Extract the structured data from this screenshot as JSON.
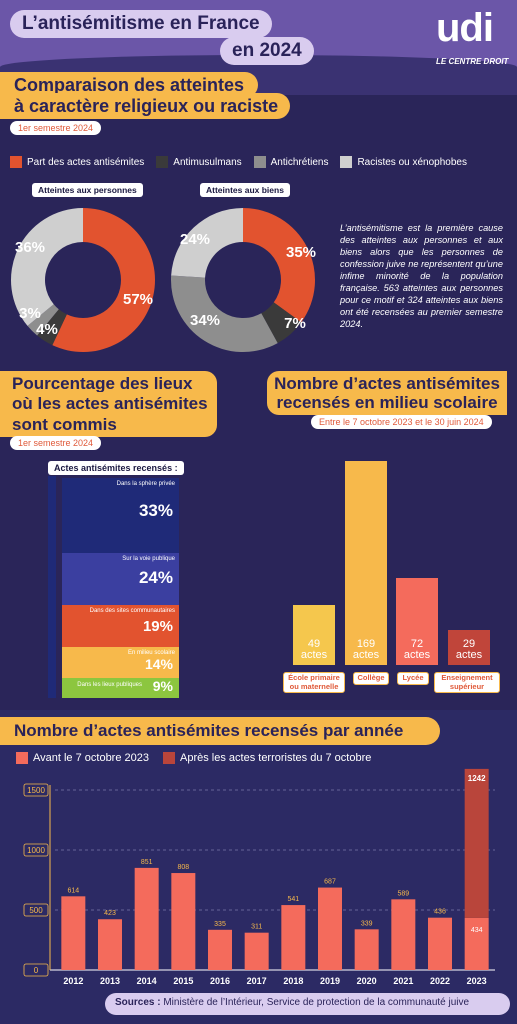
{
  "header": {
    "title_line1": "L’antisémitisme en France",
    "title_line2": "en 2024",
    "logo_text": "udi",
    "logo_tagline": "LE CENTRE DROIT"
  },
  "section1": {
    "title_line1": "Comparaison des atteintes",
    "title_line2": "à caractère religieux ou raciste",
    "period": "1er semestre 2024",
    "legend": [
      {
        "label": "Part des actes antisémites",
        "color": "#e2532f"
      },
      {
        "label": "Antimusulmans",
        "color": "#3a3a3a"
      },
      {
        "label": "Antichrétiens",
        "color": "#8e8e8e"
      },
      {
        "label": "Racistes ou xénophobes",
        "color": "#cfcfcf"
      }
    ],
    "paragraph": "L’antisémitisme est la première cause des atteintes aux personnes et aux biens alors que les personnes de confession juive ne représentent qu’une infime minorité de la population française. 563 atteintes aux personnes pour ce motif et 324 atteintes aux biens ont été recensées au premier semestre 2024."
  },
  "section2": {
    "title_line1": "Pourcentage des lieux",
    "title_line2": "où les actes antisémites",
    "title_line3": "sont commis",
    "period": "1er semestre 2024",
    "header": "Actes antisémites recensés :",
    "rows": [
      {
        "label": "Dans la sphère privée",
        "value": "33%",
        "pct": 33,
        "color": "#1f2a78"
      },
      {
        "label": "Sur la voie publique",
        "value": "24%",
        "pct": 24,
        "color": "#3b3fa0"
      },
      {
        "label": "Dans des sites communautaires",
        "value": "19%",
        "pct": 19,
        "color": "#e2532f"
      },
      {
        "label": "En milieu scolaire",
        "value": "14%",
        "pct": 14,
        "color": "#f7b94b"
      },
      {
        "label": "Dans les lieux publiques",
        "value": "9%",
        "pct": 9,
        "color": "#8cc63f"
      }
    ]
  },
  "section3": {
    "title_line1": "Nombre d’actes antisémites",
    "title_line2": "recensés en milieu scolaire",
    "period": "Entre le 7 octobre 2023 et le 30 juin 2024",
    "bars": [
      {
        "value": "49",
        "unit": "actes",
        "label_line1": "École primaire",
        "label_line2": "ou maternelle",
        "color": "#f5c74d"
      },
      {
        "value": "169",
        "unit": "actes",
        "label_line1": "Collège",
        "label_line2": "",
        "color": "#f7b94b"
      },
      {
        "value": "72",
        "unit": "actes",
        "label_line1": "Lycée",
        "label_line2": "",
        "color": "#f46b5c"
      },
      {
        "value": "29",
        "unit": "actes",
        "label_line1": "Enseignement",
        "label_line2": "supérieur",
        "color": "#c0453a"
      }
    ]
  },
  "section4": {
    "title": "Nombre d’actes antisémites recensés par année",
    "legend_before": "Avant le 7 octobre 2023",
    "legend_after": "Après les actes terroristes du 7 octobre",
    "color_before": "#f46b5c",
    "color_after": "#b9453b",
    "total_2023": "1676"
  },
  "sources": {
    "prefix": "Sources :",
    "text": " Ministère de l’Intérieur, Service de protection de la communauté juive"
  },
  "chart_data": [
    {
      "type": "pie",
      "title": "Atteintes aux personnes",
      "categories": [
        "Part des actes antisémites",
        "Antimusulmans",
        "Antichrétiens",
        "Racistes ou xénophobes"
      ],
      "values": [
        57,
        4,
        3,
        36
      ],
      "labels": [
        "57%",
        "4%",
        "3%",
        "36%"
      ],
      "colors": [
        "#e2532f",
        "#3a3a3a",
        "#8e8e8e",
        "#cfcfcf"
      ]
    },
    {
      "type": "pie",
      "title": "Atteintes aux biens",
      "categories": [
        "Part des actes antisémites",
        "Antimusulmans",
        "Antichrétiens",
        "Racistes ou xénophobes"
      ],
      "values": [
        35,
        7,
        34,
        24
      ],
      "labels": [
        "35%",
        "7%",
        "34%",
        "24%"
      ],
      "colors": [
        "#e2532f",
        "#3a3a3a",
        "#8e8e8e",
        "#cfcfcf"
      ]
    },
    {
      "type": "bar",
      "categories": [
        "2012",
        "2013",
        "2014",
        "2015",
        "2016",
        "2017",
        "2018",
        "2019",
        "2020",
        "2021",
        "2022",
        "2023"
      ],
      "series": [
        {
          "name": "Avant le 7 octobre 2023",
          "values": [
            614,
            423,
            851,
            808,
            335,
            311,
            541,
            687,
            339,
            589,
            436,
            434
          ]
        },
        {
          "name": "Après les actes terroristes du 7 octobre",
          "values": [
            0,
            0,
            0,
            0,
            0,
            0,
            0,
            0,
            0,
            0,
            0,
            1242
          ]
        }
      ],
      "value_labels": [
        "614",
        "423",
        "851",
        "808",
        "335",
        "311",
        "541",
        "687",
        "339",
        "589",
        "436",
        "434"
      ],
      "after_label": "1242",
      "yticks": [
        0,
        500,
        1000,
        1500
      ],
      "ytick_labels": [
        "0",
        "500",
        "1000",
        "1500"
      ],
      "ylim": [
        0,
        1700
      ],
      "stacked": true
    }
  ]
}
